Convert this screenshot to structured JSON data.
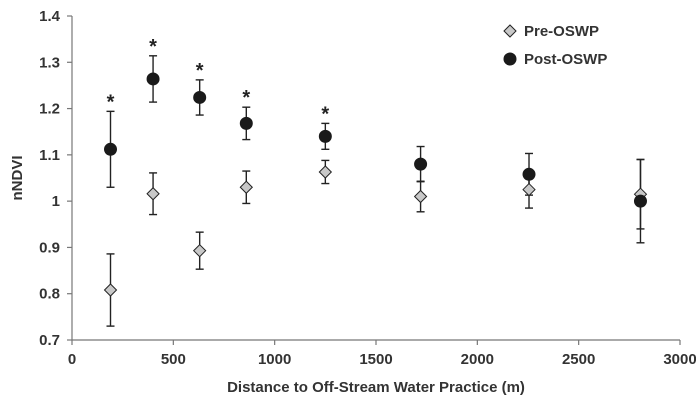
{
  "chart_data": {
    "type": "scatter",
    "xlabel": "Distance to Off-Stream Water Practice (m)",
    "ylabel": "nNDVI",
    "xlim": [
      0,
      3000
    ],
    "ylim": [
      0.7,
      1.4
    ],
    "xticks": [
      "0",
      "500",
      "1000",
      "1500",
      "2000",
      "2500",
      "3000"
    ],
    "xtick_values": [
      0,
      500,
      1000,
      1500,
      2000,
      2500,
      3000
    ],
    "yticks": [
      "0.7",
      "0.8",
      "0.9",
      "1",
      "1.1",
      "1.2",
      "1.3",
      "1.4"
    ],
    "ytick_values": [
      0.7,
      0.8,
      0.9,
      1.0,
      1.1,
      1.2,
      1.3,
      1.4
    ],
    "grid": false,
    "legend_position": "top-right",
    "series": [
      {
        "name": "Pre-OSWP",
        "marker": "diamond",
        "color": "#c8c8c8",
        "stroke": "#222222",
        "points": [
          {
            "x": 190,
            "y": 0.808,
            "err": 0.078
          },
          {
            "x": 400,
            "y": 1.016,
            "err": 0.045
          },
          {
            "x": 630,
            "y": 0.893,
            "err": 0.04
          },
          {
            "x": 860,
            "y": 1.03,
            "err": 0.035
          },
          {
            "x": 1250,
            "y": 1.063,
            "err": 0.025
          },
          {
            "x": 1720,
            "y": 1.01,
            "err": 0.033
          },
          {
            "x": 2255,
            "y": 1.025,
            "err": 0.04
          },
          {
            "x": 2805,
            "y": 1.015,
            "err": 0.075
          }
        ]
      },
      {
        "name": "Post-OSWP",
        "marker": "circle",
        "color": "#1a1a1a",
        "stroke": "#1a1a1a",
        "points": [
          {
            "x": 190,
            "y": 1.112,
            "err": 0.082
          },
          {
            "x": 400,
            "y": 1.264,
            "err": 0.05
          },
          {
            "x": 630,
            "y": 1.224,
            "err": 0.038
          },
          {
            "x": 860,
            "y": 1.168,
            "err": 0.035
          },
          {
            "x": 1250,
            "y": 1.14,
            "err": 0.028
          },
          {
            "x": 1720,
            "y": 1.08,
            "err": 0.038
          },
          {
            "x": 2255,
            "y": 1.058,
            "err": 0.045
          },
          {
            "x": 2805,
            "y": 1.0,
            "err": 0.09
          }
        ]
      }
    ],
    "annotations": [
      {
        "text": "*",
        "x": 190
      },
      {
        "text": "*",
        "x": 400
      },
      {
        "text": "*",
        "x": 630
      },
      {
        "text": "*",
        "x": 860
      },
      {
        "text": "*",
        "x": 1250
      }
    ]
  }
}
